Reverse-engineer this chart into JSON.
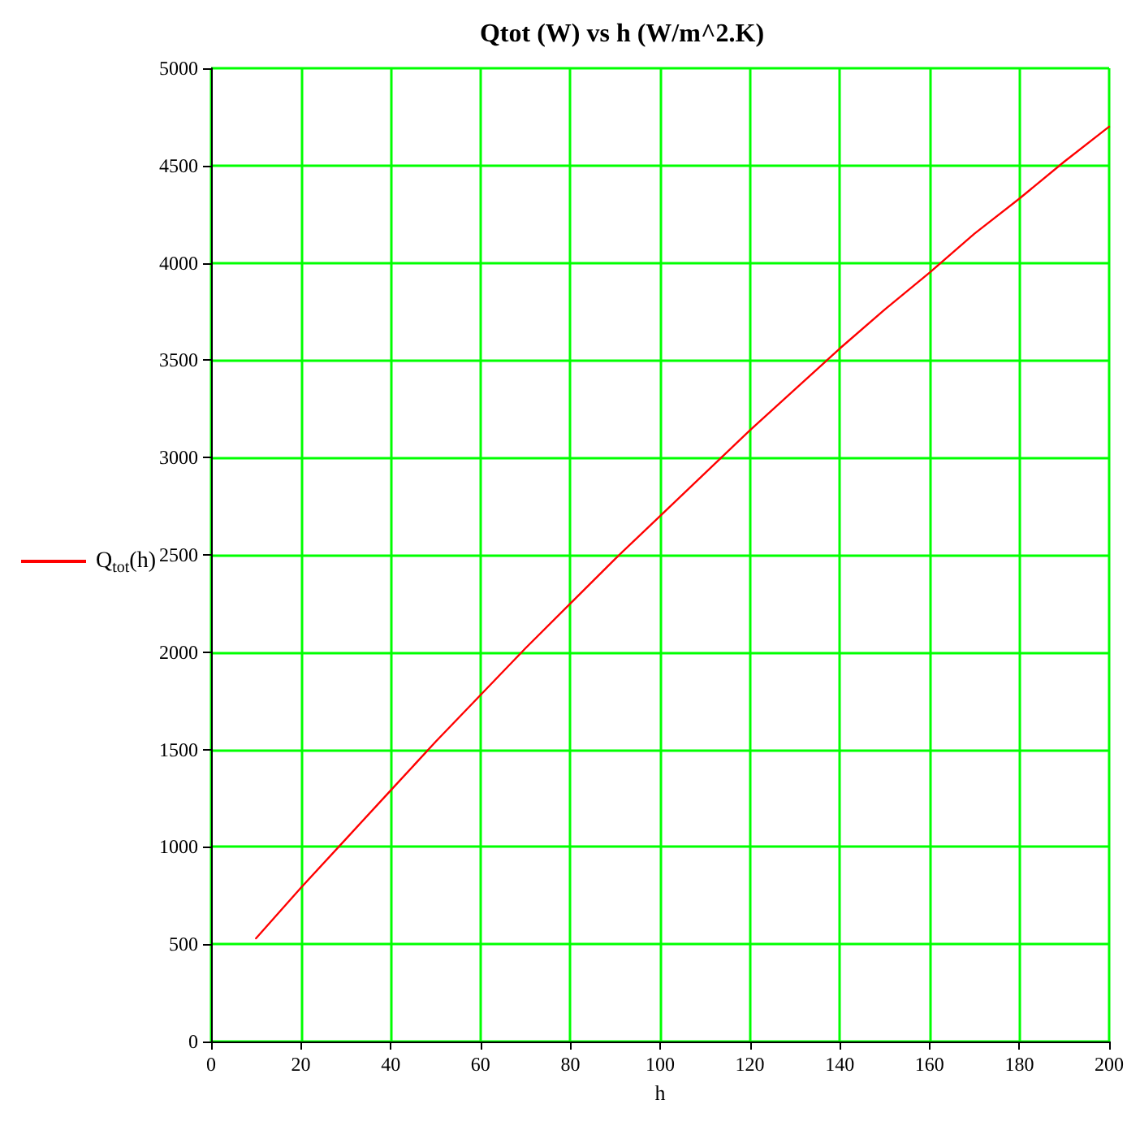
{
  "chart_data": {
    "type": "line",
    "title": "Qtot (W) vs h (W/m^2.K)",
    "xlabel": "h",
    "series": [
      {
        "name": "Q$_{tot}$(h)",
        "color": "#ff0000",
        "x": [
          10,
          20,
          30,
          40,
          50,
          60,
          70,
          80,
          90,
          100,
          110,
          120,
          130,
          140,
          150,
          160,
          170,
          180,
          190,
          200
        ],
        "values": [
          530,
          790,
          1040,
          1290,
          1540,
          1780,
          2020,
          2250,
          2480,
          2700,
          2920,
          3140,
          3350,
          3560,
          3760,
          3950,
          4150,
          4330,
          4520,
          4700
        ]
      }
    ],
    "xlim": [
      0,
      200
    ],
    "xticks": [
      0,
      20,
      40,
      60,
      80,
      100,
      120,
      140,
      160,
      180,
      200
    ],
    "ylim": [
      0,
      5000
    ],
    "yticks": [
      0,
      500,
      1000,
      1500,
      2000,
      2500,
      3000,
      3500,
      4000,
      4500,
      5000
    ],
    "grid": true,
    "legend": "left",
    "marker": "none",
    "line_style": "solid"
  }
}
